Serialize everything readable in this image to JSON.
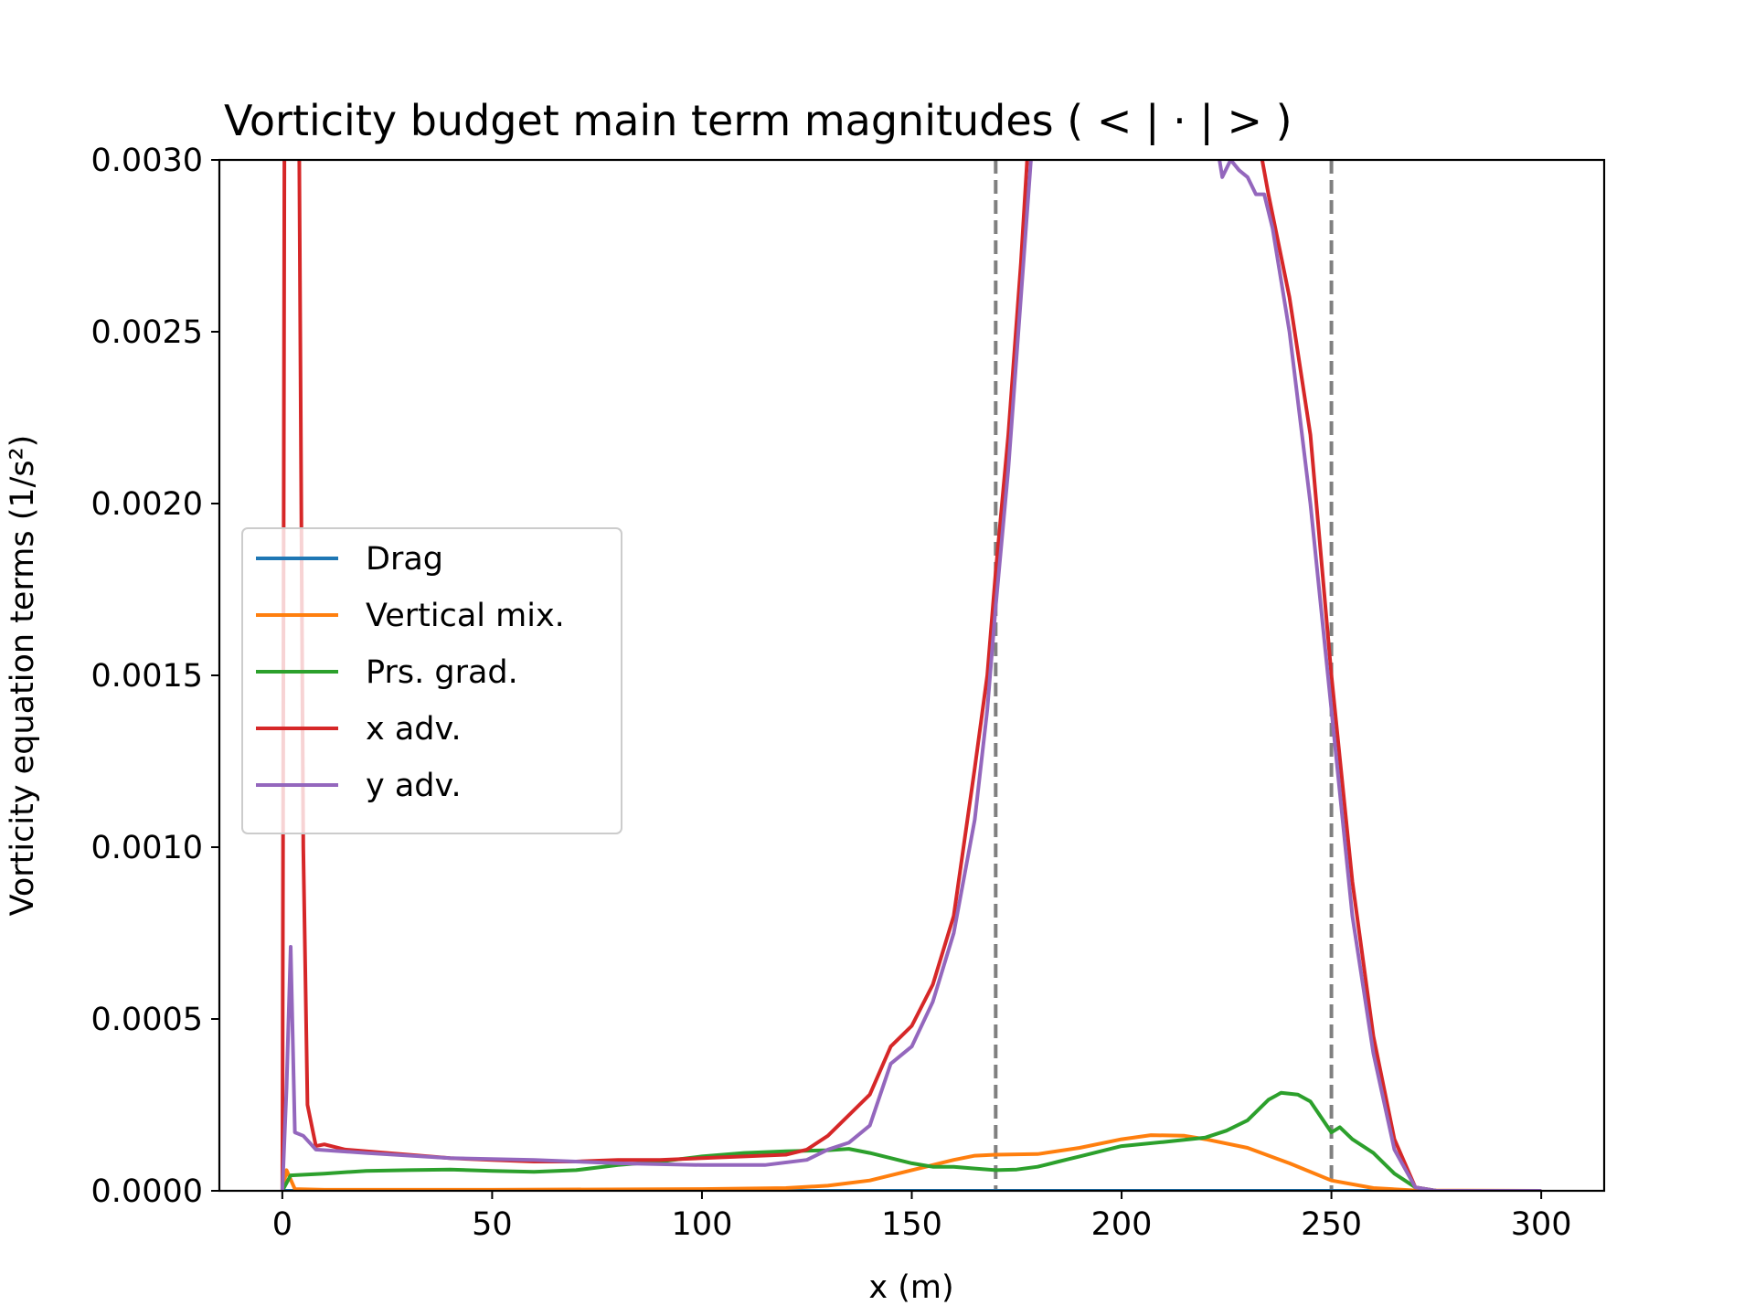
{
  "chart_data": {
    "type": "line",
    "title": "Vorticity budget main term magnitudes ( < | · | > )",
    "xlabel": "x (m)",
    "ylabel": "Vorticity equation terms (1/s²)",
    "xlim": [
      -15,
      315
    ],
    "ylim": [
      0,
      0.003
    ],
    "xticks": [
      0,
      50,
      100,
      150,
      200,
      250,
      300
    ],
    "xtick_labels": [
      "0",
      "50",
      "100",
      "150",
      "200",
      "250",
      "300"
    ],
    "yticks": [
      0,
      0.0005,
      0.001,
      0.0015,
      0.002,
      0.0025,
      0.003
    ],
    "ytick_labels": [
      "0.0000",
      "0.0005",
      "0.0010",
      "0.0015",
      "0.0020",
      "0.0025",
      "0.0030"
    ],
    "vlines": [
      170,
      250
    ],
    "vline_color": "#808080",
    "grid": false,
    "legend_position": "center-left",
    "series": [
      {
        "name": "Drag",
        "color": "#1f77b4",
        "points": [
          [
            0,
            0
          ],
          [
            300,
            0
          ]
        ]
      },
      {
        "name": "Vertical mix.",
        "color": "#ff7f0e",
        "points": [
          [
            0,
            0
          ],
          [
            1,
            6e-05
          ],
          [
            3,
            5e-06
          ],
          [
            10,
            3e-06
          ],
          [
            50,
            3e-06
          ],
          [
            100,
            5e-06
          ],
          [
            120,
            8e-06
          ],
          [
            130,
            1.5e-05
          ],
          [
            140,
            3e-05
          ],
          [
            150,
            6e-05
          ],
          [
            160,
            9e-05
          ],
          [
            165,
            0.000102
          ],
          [
            170,
            0.000105
          ],
          [
            180,
            0.000107
          ],
          [
            190,
            0.000125
          ],
          [
            200,
            0.00015
          ],
          [
            207,
            0.000162
          ],
          [
            215,
            0.00016
          ],
          [
            220,
            0.00015
          ],
          [
            230,
            0.000125
          ],
          [
            240,
            8e-05
          ],
          [
            250,
            3e-05
          ],
          [
            260,
            8e-06
          ],
          [
            270,
            1e-06
          ],
          [
            300,
            0
          ]
        ]
      },
      {
        "name": "Prs. grad.",
        "color": "#2ca02c",
        "points": [
          [
            0,
            0
          ],
          [
            2,
            4.5e-05
          ],
          [
            10,
            5e-05
          ],
          [
            20,
            5.8e-05
          ],
          [
            30,
            6e-05
          ],
          [
            40,
            6.2e-05
          ],
          [
            50,
            5.8e-05
          ],
          [
            60,
            5.5e-05
          ],
          [
            70,
            6e-05
          ],
          [
            80,
            7.5e-05
          ],
          [
            90,
            8.5e-05
          ],
          [
            100,
            0.0001
          ],
          [
            110,
            0.00011
          ],
          [
            120,
            0.000115
          ],
          [
            130,
            0.000118
          ],
          [
            135,
            0.000122
          ],
          [
            140,
            0.00011
          ],
          [
            150,
            8e-05
          ],
          [
            155,
            7e-05
          ],
          [
            160,
            7e-05
          ],
          [
            165,
            6.5e-05
          ],
          [
            170,
            6e-05
          ],
          [
            175,
            6.2e-05
          ],
          [
            180,
            7e-05
          ],
          [
            185,
            8.5e-05
          ],
          [
            190,
            0.0001
          ],
          [
            200,
            0.00013
          ],
          [
            210,
            0.000142
          ],
          [
            220,
            0.000155
          ],
          [
            225,
            0.000175
          ],
          [
            230,
            0.000205
          ],
          [
            235,
            0.000265
          ],
          [
            238,
            0.000285
          ],
          [
            242,
            0.00028
          ],
          [
            245,
            0.00026
          ],
          [
            250,
            0.00017
          ],
          [
            252,
            0.000185
          ],
          [
            255,
            0.00015
          ],
          [
            260,
            0.00011
          ],
          [
            265,
            5e-05
          ],
          [
            270,
            1e-05
          ],
          [
            275,
            0
          ],
          [
            300,
            0
          ]
        ]
      },
      {
        "name": "x adv.",
        "color": "#d62728",
        "points": [
          [
            0,
            0
          ],
          [
            0.5,
            0.0031
          ],
          [
            4,
            0.0031
          ],
          [
            5,
            0.001
          ],
          [
            6,
            0.00025
          ],
          [
            8,
            0.00013
          ],
          [
            10,
            0.000135
          ],
          [
            15,
            0.00012
          ],
          [
            20,
            0.000115
          ],
          [
            30,
            0.000105
          ],
          [
            40,
            9.5e-05
          ],
          [
            50,
            9e-05
          ],
          [
            60,
            8.5e-05
          ],
          [
            70,
            8.5e-05
          ],
          [
            80,
            9e-05
          ],
          [
            90,
            9e-05
          ],
          [
            100,
            9.5e-05
          ],
          [
            110,
            0.0001
          ],
          [
            120,
            0.000105
          ],
          [
            125,
            0.00012
          ],
          [
            130,
            0.00016
          ],
          [
            135,
            0.00022
          ],
          [
            140,
            0.00028
          ],
          [
            145,
            0.00042
          ],
          [
            150,
            0.00048
          ],
          [
            155,
            0.0006
          ],
          [
            160,
            0.0008
          ],
          [
            165,
            0.00123
          ],
          [
            168,
            0.0015
          ],
          [
            170,
            0.0018
          ],
          [
            173,
            0.0022
          ],
          [
            176,
            0.0027
          ],
          [
            178,
            0.0031
          ],
          [
            230,
            0.0031
          ],
          [
            232,
            0.0031
          ],
          [
            235,
            0.0029
          ],
          [
            240,
            0.0026
          ],
          [
            245,
            0.0022
          ],
          [
            250,
            0.0015
          ],
          [
            255,
            0.0009
          ],
          [
            260,
            0.00045
          ],
          [
            265,
            0.00015
          ],
          [
            270,
            1e-05
          ],
          [
            275,
            0
          ],
          [
            300,
            0
          ]
        ]
      },
      {
        "name": "y adv.",
        "color": "#9467bd",
        "points": [
          [
            0,
            0
          ],
          [
            1,
            0.0003
          ],
          [
            2,
            0.00071
          ],
          [
            3,
            0.00017
          ],
          [
            5,
            0.00016
          ],
          [
            8,
            0.00012
          ],
          [
            20,
            0.00011
          ],
          [
            40,
            9.5e-05
          ],
          [
            60,
            9e-05
          ],
          [
            80,
            8e-05
          ],
          [
            100,
            7.5e-05
          ],
          [
            115,
            7.5e-05
          ],
          [
            125,
            9e-05
          ],
          [
            130,
            0.00012
          ],
          [
            135,
            0.00014
          ],
          [
            140,
            0.00019
          ],
          [
            145,
            0.00037
          ],
          [
            150,
            0.00042
          ],
          [
            155,
            0.00055
          ],
          [
            160,
            0.00075
          ],
          [
            165,
            0.00108
          ],
          [
            168,
            0.0014
          ],
          [
            170,
            0.0017
          ],
          [
            173,
            0.0021
          ],
          [
            176,
            0.0026
          ],
          [
            179,
            0.0031
          ],
          [
            222,
            0.0031
          ],
          [
            224,
            0.00295
          ],
          [
            226,
            0.003
          ],
          [
            228,
            0.00297
          ],
          [
            230,
            0.00295
          ],
          [
            232,
            0.0029
          ],
          [
            234,
            0.0029
          ],
          [
            236,
            0.0028
          ],
          [
            240,
            0.0025
          ],
          [
            245,
            0.002
          ],
          [
            250,
            0.0014
          ],
          [
            255,
            0.0008
          ],
          [
            260,
            0.0004
          ],
          [
            265,
            0.00012
          ],
          [
            270,
            1e-05
          ],
          [
            275,
            0
          ],
          [
            300,
            0
          ]
        ]
      }
    ]
  }
}
